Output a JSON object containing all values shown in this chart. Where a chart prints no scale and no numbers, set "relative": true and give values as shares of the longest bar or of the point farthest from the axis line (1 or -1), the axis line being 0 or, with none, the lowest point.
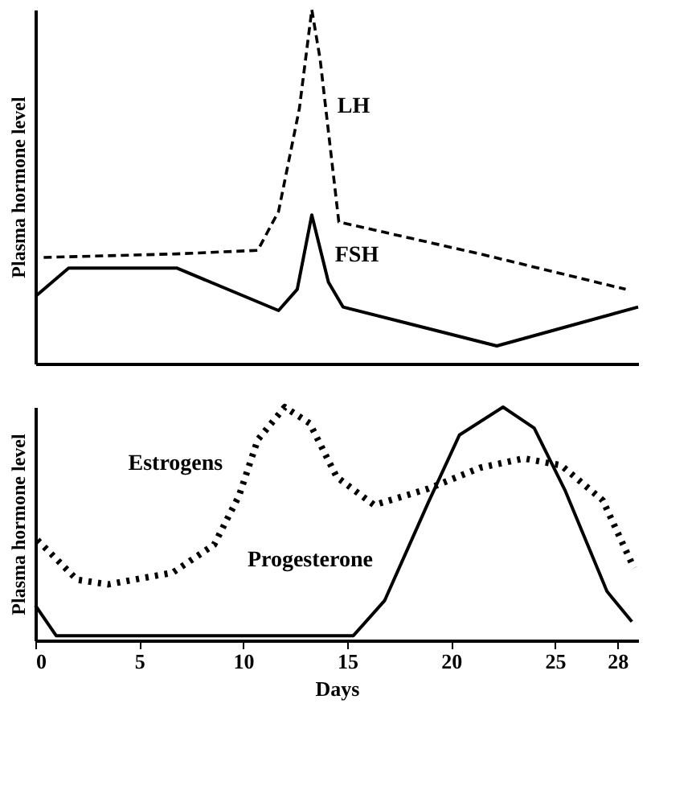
{
  "chart_data": [
    {
      "type": "line",
      "relative": true,
      "ylabel": "Plasma hormone level",
      "xlim": [
        0,
        29
      ],
      "tick_labels": false,
      "grid": false,
      "legend": false,
      "series": [
        {
          "name": "LH",
          "color": "#000000",
          "line_style": "dashed",
          "x": [
            0.4,
            6.8,
            10.7,
            11.7,
            12.7,
            13.3,
            13.7,
            14.6,
            21.4,
            28.4
          ],
          "values": [
            0.3,
            0.31,
            0.32,
            0.43,
            0.72,
            1.0,
            0.86,
            0.4,
            0.31,
            0.21
          ]
        },
        {
          "name": "FSH",
          "color": "#000000",
          "line_style": "solid",
          "x": [
            0,
            1.6,
            6.8,
            11.7,
            12.6,
            13.3,
            14.1,
            14.8,
            22.2,
            29.0
          ],
          "values": [
            0.19,
            0.27,
            0.27,
            0.15,
            0.21,
            0.42,
            0.23,
            0.16,
            0.05,
            0.16
          ]
        }
      ]
    },
    {
      "type": "line",
      "relative": true,
      "ylabel": "Plasma hormone level",
      "xlabel": "Days",
      "xlim": [
        0,
        29
      ],
      "xticks": [
        0,
        5,
        10,
        15,
        20,
        25,
        28
      ],
      "tick_labels": "x",
      "grid": false,
      "legend": false,
      "series": [
        {
          "name": "Estrogens",
          "color": "#000000",
          "line_style": "dotted",
          "x": [
            0.1,
            2.0,
            3.5,
            6.6,
            8.6,
            9.8,
            10.7,
            12.0,
            13.2,
            14.5,
            16.3,
            18.9,
            21.4,
            23.5,
            25.3,
            27.3,
            28.8
          ],
          "values": [
            0.43,
            0.26,
            0.24,
            0.29,
            0.41,
            0.62,
            0.86,
            1.0,
            0.93,
            0.7,
            0.58,
            0.65,
            0.74,
            0.78,
            0.75,
            0.6,
            0.31
          ]
        },
        {
          "name": "Progesterone",
          "color": "#000000",
          "line_style": "solid",
          "x": [
            0.0,
            1.0,
            15.3,
            16.8,
            18.9,
            20.4,
            22.5,
            24.0,
            25.5,
            27.5,
            28.7
          ],
          "values": [
            0.15,
            0.02,
            0.02,
            0.17,
            0.59,
            0.88,
            1.0,
            0.91,
            0.64,
            0.21,
            0.08
          ]
        }
      ]
    }
  ]
}
